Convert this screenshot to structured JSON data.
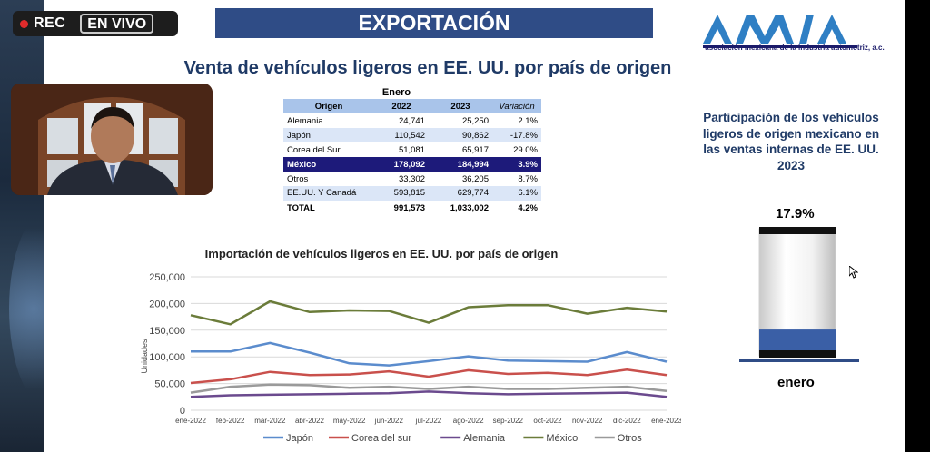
{
  "stream": {
    "rec_label": "REC",
    "live_label": "EN VIVO"
  },
  "slide": {
    "section_title": "EXPORTACIÓN",
    "main_title": "Venta de vehículos ligeros en EE. UU. por país de origen",
    "logo": {
      "text": "AMIA",
      "subtitle": "asociación mexicana de la industria automotriz, a.c."
    }
  },
  "sales_table": {
    "group_header": "Enero",
    "columns": [
      "Origen",
      "2022",
      "2023",
      "Variación"
    ],
    "rows": [
      {
        "origin": "Alemania",
        "y2022": "24,741",
        "y2023": "25,250",
        "var": "2.1%"
      },
      {
        "origin": "Japón",
        "y2022": "110,542",
        "y2023": "90,862",
        "var": "-17.8%"
      },
      {
        "origin": "Corea del Sur",
        "y2022": "51,081",
        "y2023": "65,917",
        "var": "29.0%"
      },
      {
        "origin": "México",
        "y2022": "178,092",
        "y2023": "184,994",
        "var": "3.9%"
      },
      {
        "origin": "Otros",
        "y2022": "33,302",
        "y2023": "36,205",
        "var": "8.7%"
      },
      {
        "origin": "EE.UU. Y Canadá",
        "y2022": "593,815",
        "y2023": "629,774",
        "var": "6.1%"
      },
      {
        "origin": "TOTAL",
        "y2022": "991,573",
        "y2023": "1,033,002",
        "var": "4.2%"
      }
    ]
  },
  "share": {
    "title": "Participación de los vehículos ligeros de origen mexicano en las ventas internas de EE. UU. 2023",
    "value_label": "17.9%",
    "value": 0.179,
    "month": "enero",
    "colors": {
      "fill": "#3a5fa6",
      "cap": "#111111",
      "base": "#2f4c86"
    }
  },
  "chart_data": {
    "type": "line",
    "title": "Importación de vehículos ligeros en EE. UU. por país de origen",
    "ylabel": "Unidades",
    "xlabel": "",
    "ylim": [
      0,
      250000
    ],
    "yticks": [
      0,
      50000,
      100000,
      150000,
      200000,
      250000
    ],
    "ytick_labels": [
      "0",
      "50,000",
      "100,000",
      "150,000",
      "200,000",
      "250,000"
    ],
    "categories": [
      "ene-2022",
      "feb-2022",
      "mar-2022",
      "abr-2022",
      "may-2022",
      "jun-2022",
      "jul-2022",
      "ago-2022",
      "sep-2022",
      "oct-2022",
      "nov-2022",
      "dic-2022",
      "ene-2023"
    ],
    "legend_position": "bottom",
    "series": [
      {
        "name": "Japón",
        "color": "#5b8ccd",
        "values": [
          110000,
          110000,
          126000,
          108000,
          88000,
          84000,
          92000,
          101000,
          93000,
          92000,
          91000,
          109000,
          91000
        ]
      },
      {
        "name": "Corea del sur",
        "color": "#c9504c",
        "values": [
          51000,
          58000,
          72000,
          66000,
          67000,
          73000,
          63000,
          75000,
          68000,
          70000,
          66000,
          76000,
          66000
        ]
      },
      {
        "name": "Alemania",
        "color": "#6b4a8e",
        "values": [
          25000,
          28000,
          29000,
          30000,
          31000,
          32000,
          35000,
          32000,
          30000,
          31000,
          32000,
          33000,
          25000
        ]
      },
      {
        "name": "México",
        "color": "#6b7c3a",
        "values": [
          178000,
          161000,
          204000,
          184000,
          187000,
          186000,
          164000,
          193000,
          197000,
          197000,
          181000,
          192000,
          185000
        ]
      },
      {
        "name": "Otros",
        "color": "#9a9a9a",
        "values": [
          33000,
          44000,
          48000,
          47000,
          42000,
          44000,
          40000,
          44000,
          40000,
          40000,
          42000,
          44000,
          36000
        ]
      }
    ]
  }
}
